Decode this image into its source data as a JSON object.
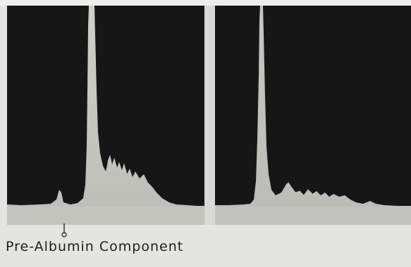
{
  "caption": {
    "text": "Pre-Albumin Component"
  },
  "colors": {
    "panel_background": "#161616",
    "trace": "#bdbdb9",
    "page_background": "#e4e4e2",
    "caption_text": "#1e1e1e"
  }
}
